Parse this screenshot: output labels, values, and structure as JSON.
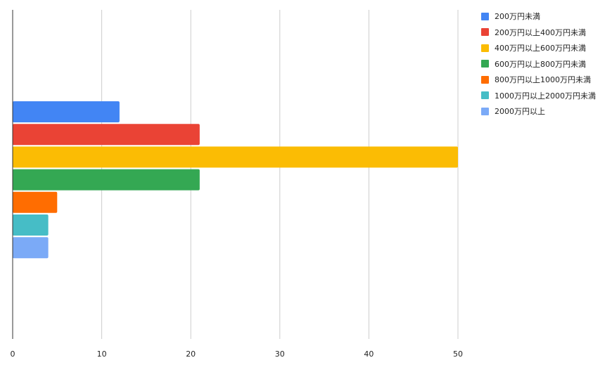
{
  "chart_data": {
    "type": "bar",
    "orientation": "horizontal",
    "title": "",
    "xlabel": "",
    "ylabel": "",
    "xlim": [
      0,
      50
    ],
    "x_ticks": [
      0,
      10,
      20,
      30,
      40,
      50
    ],
    "grid": true,
    "legend_position": "right",
    "series": [
      {
        "name": "200万円未満",
        "value": 12,
        "color": "#4285F4"
      },
      {
        "name": "200万円以上400万円未満",
        "value": 21,
        "color": "#EA4335"
      },
      {
        "name": "400万円以上600万円未満",
        "value": 50,
        "color": "#FBBC04"
      },
      {
        "name": "600万円以上800万円未満",
        "value": 21,
        "color": "#34A853"
      },
      {
        "name": "800万円以上1000万円未満",
        "value": 5,
        "color": "#FF6D01"
      },
      {
        "name": "1000万円以上2000万円未満",
        "value": 4,
        "color": "#46BDC6"
      },
      {
        "name": "2000万円以上",
        "value": 4,
        "color": "#7BAAF7"
      }
    ]
  }
}
